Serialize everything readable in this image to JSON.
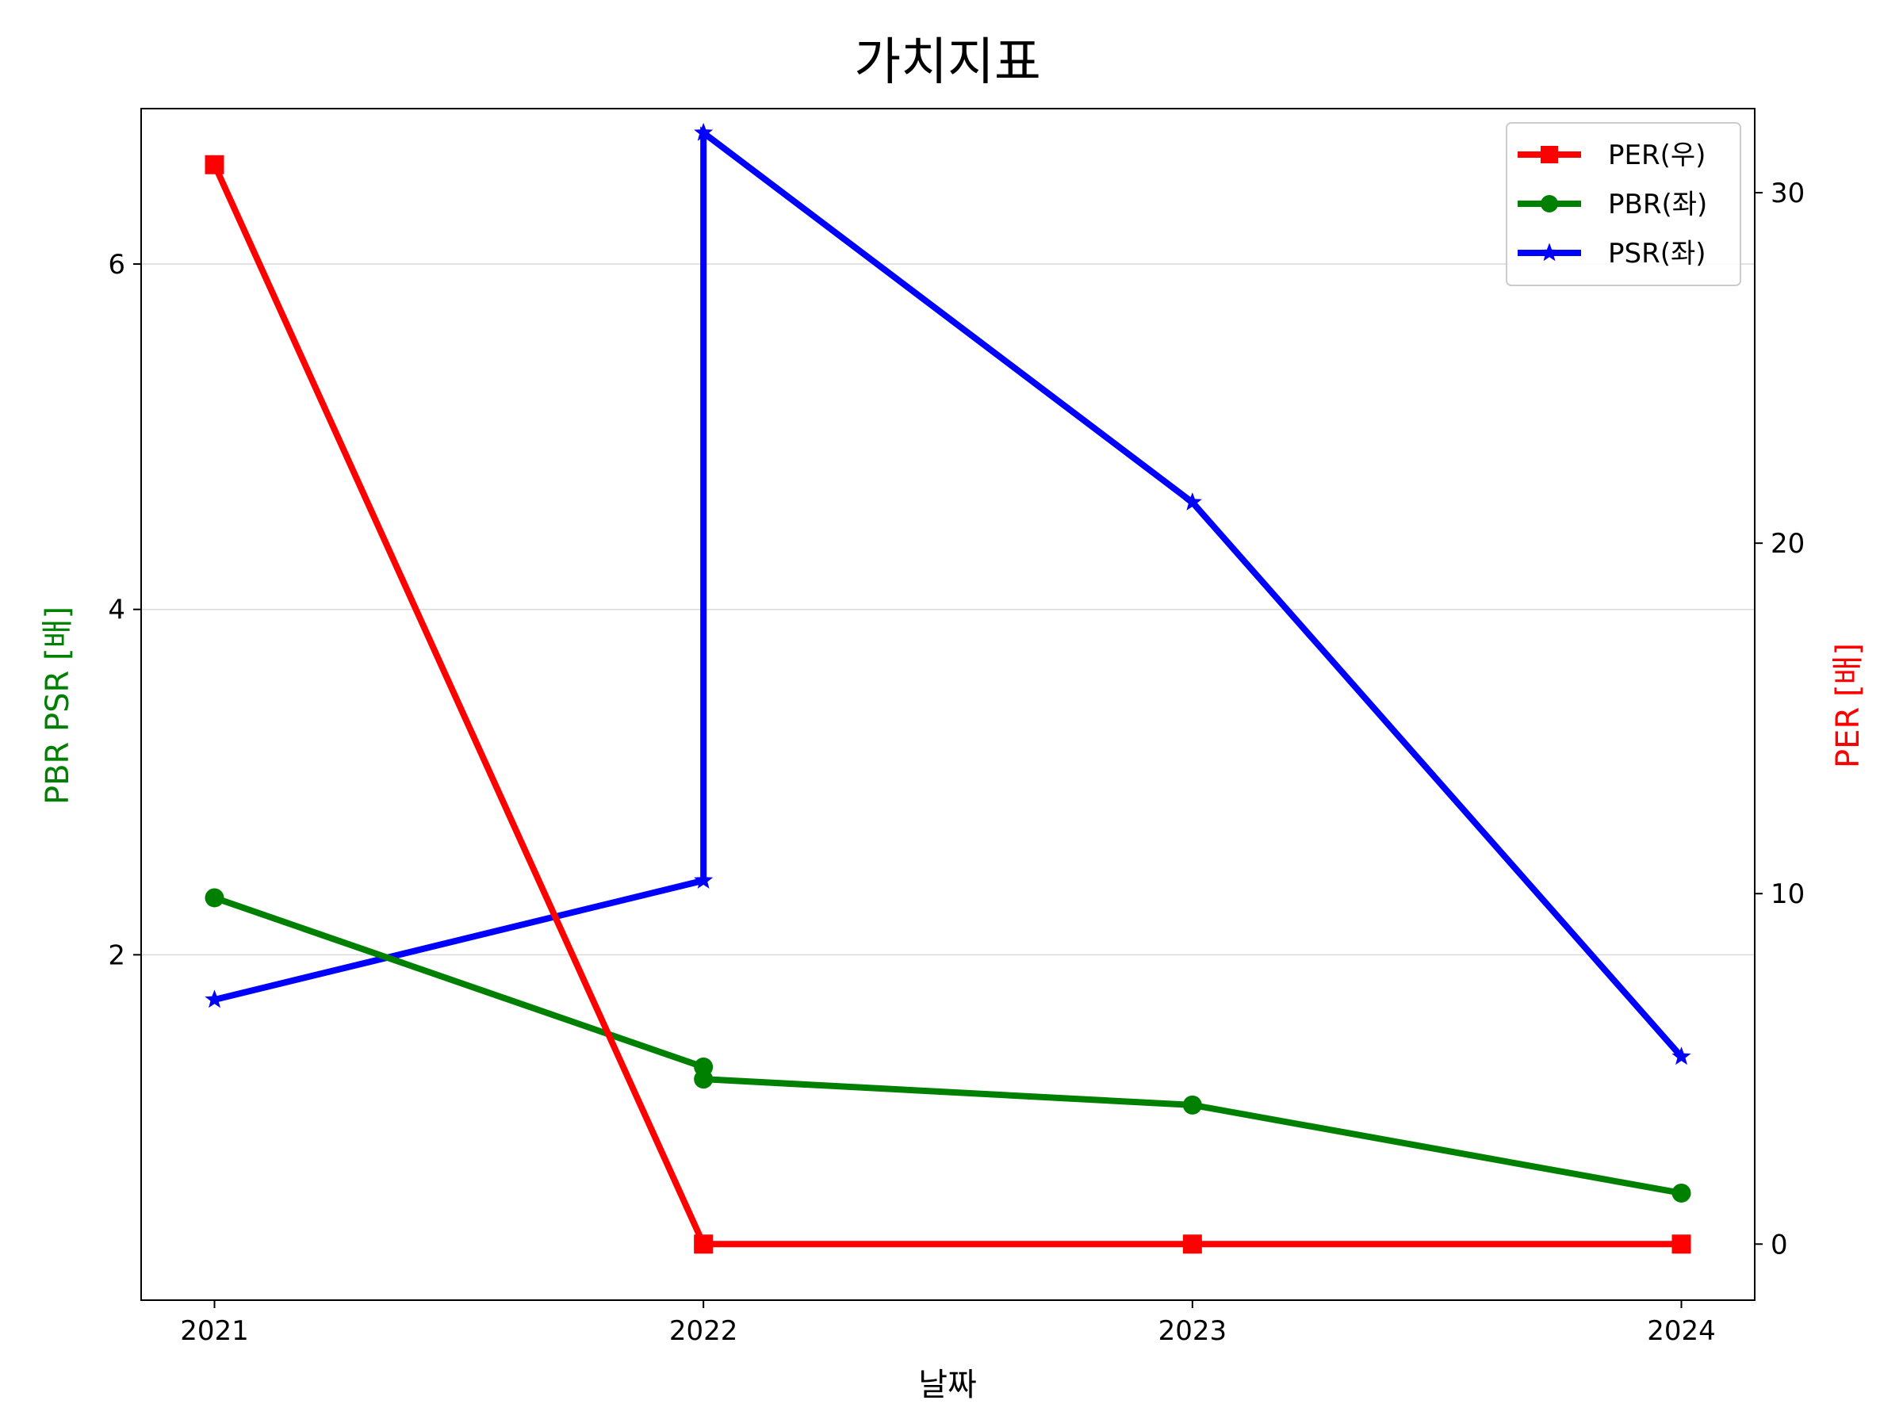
{
  "chart_data": {
    "type": "line",
    "title": "가치지표",
    "xlabel": "날짜",
    "ylabel_left": "PBR PSR [배]",
    "ylabel_right": "PER [배]",
    "x_ticks": [
      "2021",
      "2022",
      "2023",
      "2024"
    ],
    "x_range": [
      2020.85,
      2024.15
    ],
    "y_left_range": [
      0.0,
      6.9
    ],
    "y_left_ticks": [
      2,
      4,
      6
    ],
    "y_right_range": [
      -1.6,
      32.4
    ],
    "y_right_ticks": [
      0,
      10,
      20,
      30
    ],
    "grid": "horizontal (left axis)",
    "legend_position": "top-right",
    "series": [
      {
        "name": "PER(우)",
        "axis": "right",
        "color": "#ff0000",
        "marker": "square",
        "points": [
          [
            2021,
            30.8
          ],
          [
            2022,
            0
          ],
          [
            2023,
            0
          ],
          [
            2024,
            0
          ]
        ]
      },
      {
        "name": "PBR(좌)",
        "axis": "left",
        "color": "#008000",
        "marker": "circle",
        "points": [
          [
            2021,
            2.33
          ],
          [
            2022,
            1.35
          ],
          [
            2022,
            1.28
          ],
          [
            2023,
            1.13
          ],
          [
            2024,
            0.62
          ]
        ]
      },
      {
        "name": "PSR(좌)",
        "axis": "left",
        "color": "#0000ff",
        "marker": "star",
        "points": [
          [
            2021,
            1.74
          ],
          [
            2022,
            2.43
          ],
          [
            2022,
            6.76
          ],
          [
            2023,
            4.62
          ],
          [
            2024,
            1.41
          ]
        ]
      }
    ]
  }
}
